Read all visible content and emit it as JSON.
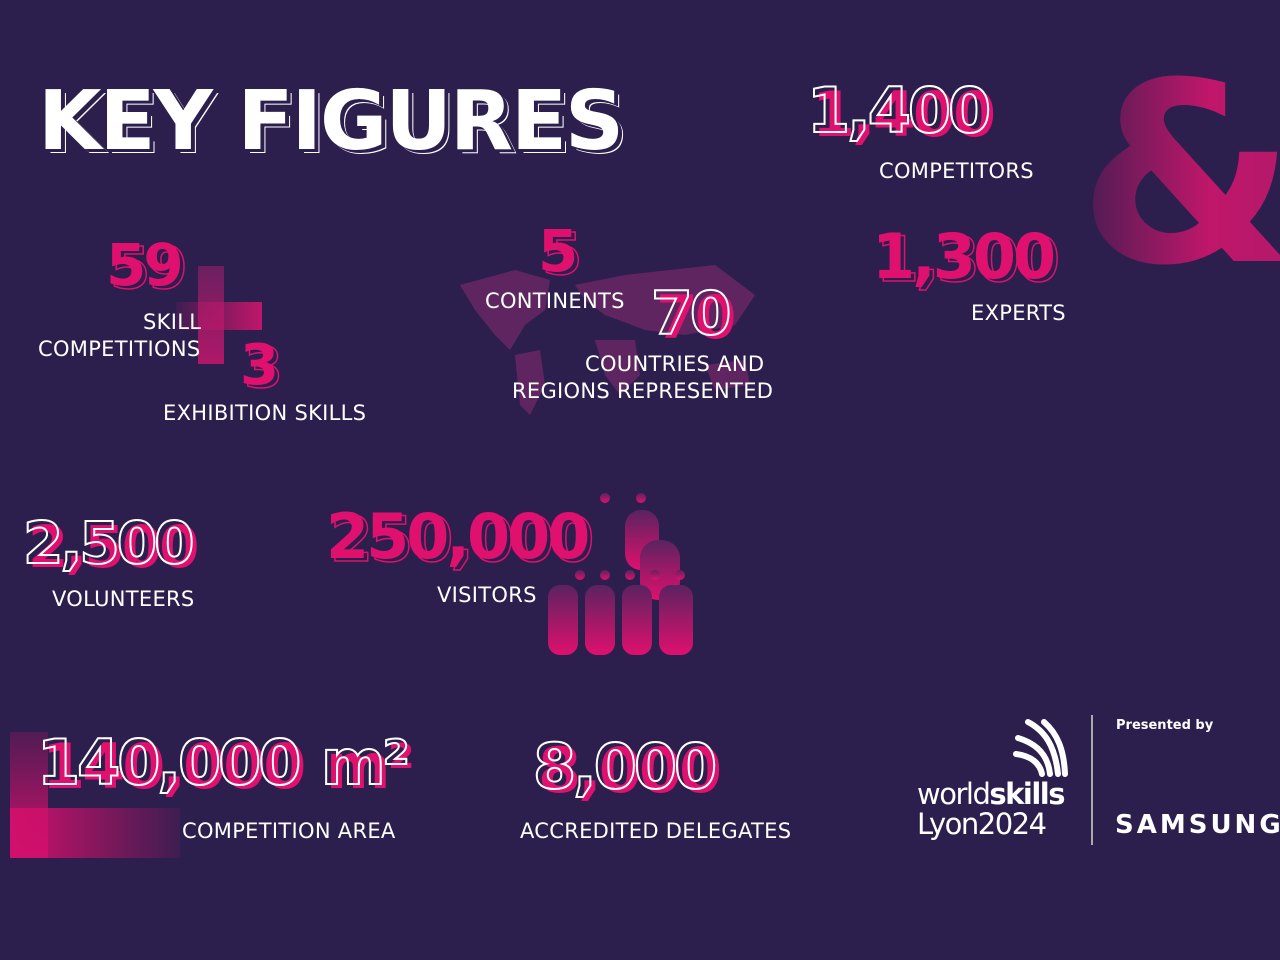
{
  "title": "KEY FIGURES",
  "colors": {
    "background": "#2c1f4e",
    "accent": "#e0106e",
    "text": "#ffffff"
  },
  "figures": {
    "competitors": {
      "value": "1,400",
      "label": "COMPETITORS"
    },
    "ampersand": "&",
    "experts": {
      "value": "1,300",
      "label": "EXPERTS"
    },
    "skills": {
      "value": "59",
      "label1": "SKILL",
      "label2": "COMPETITIONS"
    },
    "exhibition": {
      "value": "3",
      "label": "EXHIBITION SKILLS"
    },
    "continents": {
      "value": "5",
      "label": "CONTINENTS"
    },
    "countries": {
      "value": "70",
      "label1": "COUNTRIES AND",
      "label2": "REGIONS REPRESENTED"
    },
    "volunteers": {
      "value": "2,500",
      "label": "VOLUNTEERS"
    },
    "visitors": {
      "value": "250,000",
      "label": "VISITORS"
    },
    "area": {
      "value": "140,000",
      "unit": "m²",
      "label": "COMPETITION AREA"
    },
    "delegates": {
      "value": "8,000",
      "label": "ACCREDITED DELEGATES"
    }
  },
  "logos": {
    "event_line1a": "world",
    "event_line1b": "skills",
    "event_line2": "Lyon2024",
    "presented_by": "Presented by",
    "sponsor": "SAMSUNG"
  }
}
